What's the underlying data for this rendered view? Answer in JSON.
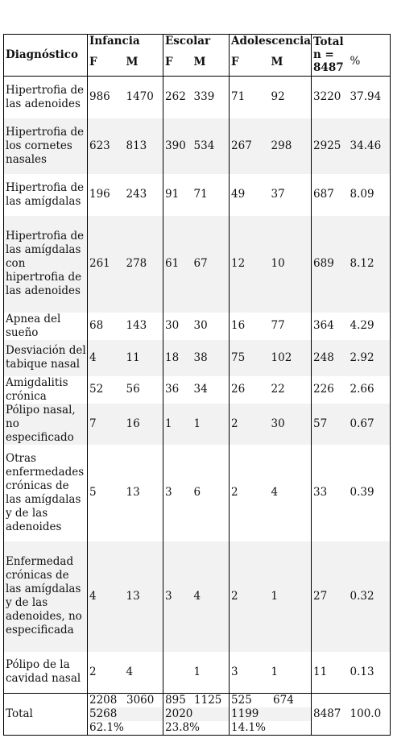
{
  "table": {
    "header": {
      "diagnostico": "Diagnóstico",
      "groups": [
        "Infancia",
        "Escolar",
        "Adolescencia"
      ],
      "total_label": "Total",
      "total_n": "n =",
      "total_count": "8487",
      "sex_f": "F",
      "sex_m": "M",
      "percent": "%"
    },
    "rows": [
      {
        "label": "Hipertrofia de las adenoides",
        "vals": [
          "986",
          "1470",
          "262",
          "339",
          "71",
          "92"
        ],
        "total": "3220",
        "pct": "37.94"
      },
      {
        "label": "Hipertrofia de los cornetes nasales",
        "vals": [
          "623",
          "813",
          "390",
          "534",
          "267",
          "298"
        ],
        "total": "2925",
        "pct": "34.46"
      },
      {
        "label": "Hipertrofia de las amígdalas",
        "vals": [
          "196",
          "243",
          "91",
          "71",
          "49",
          "37"
        ],
        "total": "687",
        "pct": "8.09"
      },
      {
        "label": "Hipertrofia de las amígdalas con hipertrofia de las adenoides",
        "vals": [
          "261",
          "278",
          "61",
          "67",
          "12",
          "10"
        ],
        "total": "689",
        "pct": "8.12"
      },
      {
        "label": "Apnea del sueño",
        "vals": [
          "68",
          "143",
          "30",
          "30",
          "16",
          "77"
        ],
        "total": "364",
        "pct": "4.29"
      },
      {
        "label": "Desviación del tabique nasal",
        "vals": [
          "4",
          "11",
          "18",
          "38",
          "75",
          "102"
        ],
        "total": "248",
        "pct": "2.92"
      },
      {
        "label": "Amigdalitis crónica",
        "vals": [
          "52",
          "56",
          "36",
          "34",
          "26",
          "22"
        ],
        "total": "226",
        "pct": "2.66"
      },
      {
        "label": "Pólipo nasal, no especificado",
        "vals": [
          "7",
          "16",
          "1",
          "1",
          "2",
          "30"
        ],
        "total": "57",
        "pct": "0.67"
      },
      {
        "label": "Otras enfermedades crónicas de las amígdalas y de las adenoides",
        "vals": [
          "5",
          "13",
          "3",
          "6",
          "2",
          "4"
        ],
        "total": "33",
        "pct": "0.39"
      },
      {
        "label": "Enfermedad crónicas de las amígdalas y de las adenoides, no especificada",
        "vals": [
          "4",
          "13",
          "3",
          "4",
          "2",
          "1"
        ],
        "total": "27",
        "pct": "0.32"
      },
      {
        "label": "Pólipo de la cavidad nasal",
        "vals": [
          "2",
          "4",
          "",
          "1",
          "3",
          "1"
        ],
        "total": "11",
        "pct": "0.13"
      }
    ],
    "total_row": {
      "label": "Total",
      "groups": [
        {
          "f": "2208",
          "m": "3060",
          "sum": "5268",
          "pct": "62.1%"
        },
        {
          "f": "895",
          "m": "1125",
          "sum": "2020",
          "pct": "23.8%"
        },
        {
          "f": "525",
          "m": "674",
          "sum": "1199",
          "pct": "14.1%"
        }
      ],
      "total": "8487",
      "pct": "100.0"
    }
  }
}
